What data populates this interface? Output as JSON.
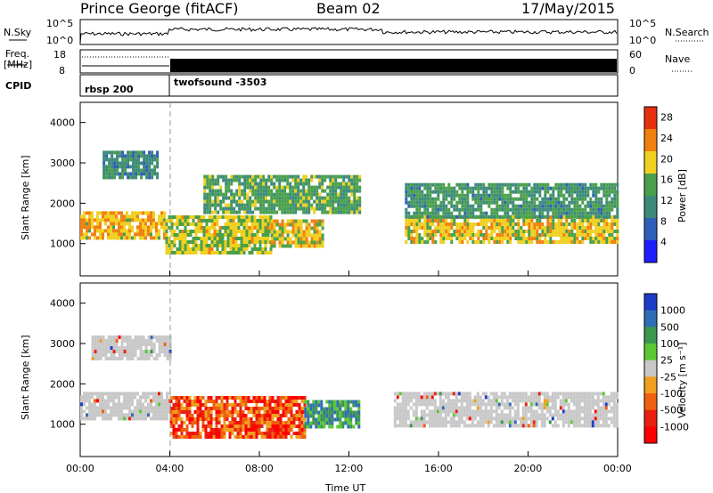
{
  "header": {
    "station": "Prince George (fitACF)",
    "beam": "Beam 02",
    "date": "17/May/2015"
  },
  "noise_panel": {
    "left_label": "N.Sky",
    "right_label": "N.Search",
    "y_ticks": [
      "10^5",
      "10^0"
    ],
    "right_ticks": [
      "10^5",
      "10^0"
    ]
  },
  "freq_panel": {
    "label_line1": "Freq.",
    "label_line2": "[MHz]",
    "right_label": "Nave",
    "y_ticks": [
      "18",
      "8"
    ],
    "right_ticks": [
      "60",
      "0"
    ]
  },
  "cpid_panel": {
    "label": "CPID",
    "modes": [
      {
        "name": "rbsp 200",
        "start_hour": 0
      },
      {
        "name": "twofsound -3503",
        "start_hour": 4
      }
    ]
  },
  "chart_data": [
    {
      "type": "heatmap",
      "panel": "power",
      "ylabel": "Slant Range [km]",
      "xlabel": "Time UT",
      "ylim": [
        200,
        4500
      ],
      "xlim_hours": [
        0,
        24
      ],
      "y_ticks": [
        1000,
        2000,
        3000,
        4000
      ],
      "x_ticks": [
        "00:00",
        "04:00",
        "08:00",
        "12:00",
        "16:00",
        "20:00",
        "00:00"
      ],
      "colorbar": {
        "label": "Power [dB]",
        "ticks": [
          4,
          8,
          12,
          16,
          20,
          24,
          28
        ],
        "range": [
          0,
          30
        ],
        "colors": [
          "#1e1eff",
          "#2f5fb8",
          "#3c8a7a",
          "#4aa04a",
          "#f0d020",
          "#f08010",
          "#e83010"
        ]
      },
      "bands": [
        {
          "t0": 0.0,
          "t1": 3.8,
          "r0": 1100,
          "r1": 1800,
          "value": 22
        },
        {
          "t0": 3.8,
          "t1": 8.5,
          "r0": 800,
          "r1": 1700,
          "value": 18
        },
        {
          "t0": 8.5,
          "t1": 10.8,
          "r0": 900,
          "r1": 1600,
          "value": 20
        },
        {
          "t0": 14.5,
          "t1": 24.0,
          "r0": 1000,
          "r1": 1700,
          "value": 20
        },
        {
          "t0": 1.0,
          "t1": 3.5,
          "r0": 2600,
          "r1": 3300,
          "value": 10
        },
        {
          "t0": 5.5,
          "t1": 12.5,
          "r0": 1800,
          "r1": 2700,
          "value": 14
        },
        {
          "t0": 14.5,
          "t1": 24.0,
          "r0": 1700,
          "r1": 2500,
          "value": 12
        }
      ]
    },
    {
      "type": "heatmap",
      "panel": "velocity",
      "ylabel": "Slant Range [km]",
      "xlabel": "Time UT",
      "ylim": [
        200,
        4500
      ],
      "xlim_hours": [
        0,
        24
      ],
      "y_ticks": [
        1000,
        2000,
        3000,
        4000
      ],
      "x_ticks": [
        "00:00",
        "04:00",
        "08:00",
        "12:00",
        "16:00",
        "20:00",
        "00:00"
      ],
      "colorbar": {
        "label": "Velocity [m s⁻¹]",
        "ticks": [
          "1000",
          "500",
          "100",
          "25",
          "-25",
          "-100",
          "-500",
          "-1000"
        ],
        "colors": [
          "#1e3cc8",
          "#2f6eb4",
          "#3c9650",
          "#5ac832",
          "#c8c8c8",
          "#f0a020",
          "#f06010",
          "#e82010",
          "#ff0000"
        ]
      },
      "bands": [
        {
          "t0": 0.0,
          "t1": 4.0,
          "r0": 1100,
          "r1": 1800,
          "value": 0
        },
        {
          "t0": 4.0,
          "t1": 10.0,
          "r0": 700,
          "r1": 1700,
          "value": -400
        },
        {
          "t0": 10.0,
          "t1": 12.5,
          "r0": 900,
          "r1": 1600,
          "value": 300
        },
        {
          "t0": 14.0,
          "t1": 24.0,
          "r0": 1000,
          "r1": 1800,
          "value": 0
        },
        {
          "t0": 0.5,
          "t1": 4.0,
          "r0": 2600,
          "r1": 3200,
          "value": 0
        }
      ]
    }
  ]
}
